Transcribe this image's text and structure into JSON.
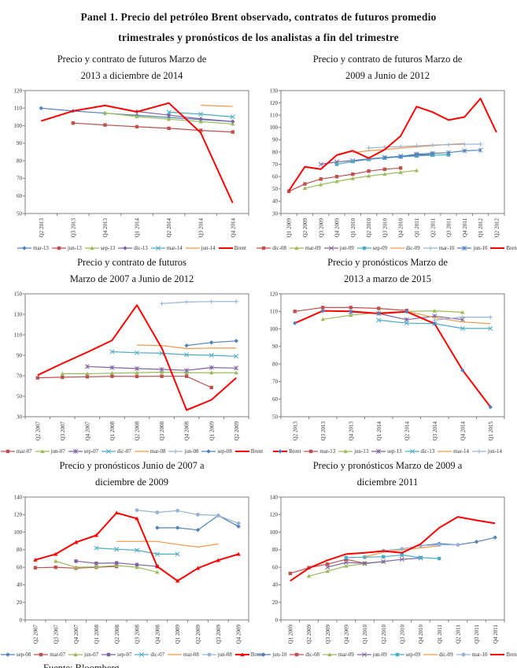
{
  "title": "Panel 1. Precio del petróleo Brent observado, contratos de futuros promedio\ntrimestrales y pronósticos de los analistas a fin del trimestre",
  "source": "Fuente: Bloomberg.",
  "chart_data": [
    {
      "type": "line",
      "title": "Precio y contrato de futuros Marzo de\n2013 a diciembre de 2014",
      "ylim": [
        50,
        120
      ],
      "ystep": 10,
      "grid": false,
      "legend_position": "bottom",
      "categories": [
        "Q2 2013",
        "Q3 2013",
        "Q4 2013",
        "Q1 2014",
        "Q2 2014",
        "Q3 2014",
        "Q4 2014"
      ],
      "series": [
        {
          "name": "mar-13",
          "color": "#4F81BD",
          "marker": "diamond",
          "values": [
            110,
            108.4,
            107.1,
            105.9,
            104.7,
            103.5,
            102.3
          ]
        },
        {
          "name": "jun-13",
          "color": "#C0504D",
          "marker": "square",
          "values": [
            null,
            101.5,
            100.4,
            99.4,
            98.5,
            97.3,
            96.4
          ]
        },
        {
          "name": "sep-13",
          "color": "#9BBB59",
          "marker": "triangle",
          "values": [
            null,
            null,
            107.3,
            105.2,
            103.7,
            102.3,
            101
          ]
        },
        {
          "name": "dic-13",
          "color": "#8064A2",
          "marker": "diamond",
          "values": [
            null,
            null,
            null,
            108.1,
            106,
            103.9,
            102.4
          ]
        },
        {
          "name": "mar-14",
          "color": "#4BACC6",
          "marker": "x",
          "values": [
            null,
            null,
            null,
            null,
            107.7,
            106.6,
            105
          ]
        },
        {
          "name": "jun-14",
          "color": "#F79646",
          "marker": "none",
          "values": [
            null,
            null,
            null,
            null,
            null,
            111.7,
            111
          ]
        },
        {
          "name": "Brent",
          "color": "#FF0000",
          "marker": "none",
          "width": 2,
          "values": [
            102.7,
            108.4,
            111.5,
            107.9,
            112.9,
            96,
            56
          ]
        }
      ]
    },
    {
      "type": "line",
      "title": "Precio y contrato de futuros Marzo de\n2009 a Junio de 2012",
      "ylim": [
        30,
        130
      ],
      "ystep": 10,
      "grid": false,
      "legend_position": "bottom",
      "categories": [
        "Q1 2009",
        "Q2 2009",
        "Q3 2009",
        "Q4 2009",
        "Q1 2010",
        "Q2 2010",
        "Q3 2010",
        "Q4 2010",
        "Q1 2011",
        "Q2 2011",
        "Q3 2011",
        "Q4 2011",
        "Q1 2012",
        "Q2 2012"
      ],
      "series": [
        {
          "name": "dic-08",
          "color": "#C0504D",
          "marker": "square",
          "values": [
            48,
            54,
            58,
            60,
            62,
            64.5,
            66,
            67,
            null,
            null,
            null,
            null,
            null,
            null
          ]
        },
        {
          "name": "mar-09",
          "color": "#9BBB59",
          "marker": "triangle",
          "values": [
            null,
            50.5,
            53.5,
            56,
            58.5,
            60.5,
            62,
            63.5,
            65,
            null,
            null,
            null,
            null,
            null
          ]
        },
        {
          "name": "jun-09",
          "color": "#8064A2",
          "marker": "x",
          "values": [
            null,
            null,
            70,
            72,
            73,
            74.5,
            75.5,
            76.5,
            77.5,
            78,
            null,
            null,
            null,
            null
          ]
        },
        {
          "name": "sep-09",
          "color": "#4BACC6",
          "marker": "square",
          "values": [
            null,
            null,
            null,
            70,
            72.3,
            74,
            75.2,
            76,
            76.8,
            77.5,
            77.7,
            null,
            null,
            null
          ]
        },
        {
          "name": "dic-09",
          "color": "#F79646",
          "marker": "none",
          "values": [
            null,
            null,
            null,
            null,
            79.5,
            81,
            82,
            83.2,
            84.2,
            85.2,
            86.2,
            87,
            null,
            null
          ]
        },
        {
          "name": "mar-10",
          "color": "#95B3D7",
          "marker": "plus",
          "values": [
            null,
            null,
            null,
            null,
            null,
            83.3,
            84,
            84.5,
            85,
            85.7,
            86,
            86.3,
            86.5,
            null
          ]
        },
        {
          "name": "jun-10",
          "color": "#4F81BD",
          "marker": "star",
          "values": [
            null,
            null,
            null,
            null,
            null,
            null,
            75.5,
            76.5,
            78.3,
            79,
            79.5,
            81,
            81.5,
            null
          ]
        },
        {
          "name": "Brent",
          "color": "#FF0000",
          "marker": "none",
          "width": 2,
          "values": [
            48.5,
            68,
            66,
            77.5,
            81,
            75,
            82,
            93,
            117,
            112.5,
            106,
            108.5,
            123.5,
            96
          ]
        }
      ]
    },
    {
      "type": "line",
      "title": "Precio y contrato de futuros\nMarzo de 2007 a  Junio de 2012",
      "ylim": [
        30,
        150
      ],
      "ystep": 20,
      "grid": false,
      "legend_position": "bottom",
      "categories": [
        "Q2 2007",
        "Q3 2007",
        "Q4 2007",
        "Q1 2008",
        "Q2 2008",
        "Q3 2008",
        "Q4 2008",
        "Q1 2009",
        "Q2 2009"
      ],
      "series": [
        {
          "name": "mar-07",
          "color": "#C0504D",
          "marker": "square",
          "values": [
            68,
            68.5,
            69,
            69.5,
            69.3,
            69.5,
            69.5,
            58.5,
            null
          ]
        },
        {
          "name": "jun-07",
          "color": "#9BBB59",
          "marker": "triangle",
          "values": [
            null,
            72,
            72,
            72.5,
            73,
            73.5,
            73,
            73,
            73
          ]
        },
        {
          "name": "sep-07",
          "color": "#8064A2",
          "marker": "star",
          "values": [
            null,
            null,
            79,
            78,
            77,
            76.2,
            75.2,
            78,
            77.5
          ]
        },
        {
          "name": "dic-07",
          "color": "#4BACC6",
          "marker": "x",
          "values": [
            null,
            null,
            null,
            93.5,
            92.5,
            92,
            90.5,
            90,
            89
          ]
        },
        {
          "name": "mar-08",
          "color": "#F79646",
          "marker": "none",
          "values": [
            null,
            null,
            null,
            null,
            100,
            99.5,
            96.5,
            97,
            97
          ]
        },
        {
          "name": "jun-08",
          "color": "#95B3D7",
          "marker": "plus",
          "values": [
            null,
            null,
            null,
            null,
            null,
            140.5,
            142,
            142.5,
            142.5
          ]
        },
        {
          "name": "sep-08",
          "color": "#4F81BD",
          "marker": "diamond",
          "values": [
            null,
            null,
            null,
            null,
            null,
            null,
            99.5,
            102.5,
            104
          ]
        },
        {
          "name": "Brent",
          "color": "#FF0000",
          "marker": "none",
          "width": 2,
          "values": [
            70.5,
            82,
            93,
            104.5,
            139,
            97,
            36.5,
            46.5,
            68
          ]
        }
      ]
    },
    {
      "type": "line",
      "title": "Precio y pronósticos Marzo de\n2013 a marzo de 2015",
      "ylim": [
        50,
        120
      ],
      "ystep": 10,
      "grid": false,
      "legend_position": "bottom",
      "categories": [
        "Q2 2013",
        "Q3 2013",
        "Q4 2013",
        "Q1 2014",
        "Q2 2014",
        "Q3 2014",
        "Q4 2014",
        "Q1 2015"
      ],
      "series": [
        {
          "name": "Brent",
          "color": "#FF0000",
          "marker": "diamond",
          "markerColor": "#4F81BD",
          "width": 2,
          "values": [
            103.3,
            110.3,
            110,
            108.8,
            109.8,
            103,
            76.5,
            55.5
          ]
        },
        {
          "name": "mar-13",
          "color": "#C0504D",
          "marker": "square",
          "values": [
            110,
            112.2,
            112.2,
            111.7,
            110.5,
            null,
            null,
            null
          ]
        },
        {
          "name": "jun-13",
          "color": "#9BBB59",
          "marker": "triangle",
          "values": [
            null,
            105.5,
            107.8,
            109.3,
            110,
            110.3,
            109.5,
            null
          ]
        },
        {
          "name": "sep-13",
          "color": "#8064A2",
          "marker": "star",
          "values": [
            null,
            null,
            109.5,
            108.8,
            105.3,
            107.3,
            105.3,
            null
          ]
        },
        {
          "name": "dic-13",
          "color": "#4BACC6",
          "marker": "x",
          "values": [
            null,
            null,
            null,
            105,
            103.3,
            103,
            100.3,
            100.3
          ]
        },
        {
          "name": "mar-14",
          "color": "#F79646",
          "marker": "none",
          "values": [
            null,
            null,
            null,
            null,
            110,
            106.5,
            104,
            103
          ]
        },
        {
          "name": "jun-14",
          "color": "#95B3D7",
          "marker": "plus",
          "values": [
            null,
            null,
            null,
            null,
            null,
            105,
            106.7,
            106.7
          ]
        }
      ]
    },
    {
      "type": "line",
      "title": "Precio y pronósticos Junio de 2007 a\ndiciembre de 2009",
      "ylim": [
        0,
        140
      ],
      "ystep": 20,
      "grid": false,
      "legend_position": "bottom",
      "categories": [
        "Q2 2007",
        "Q3 2007",
        "Q4 2007",
        "Q1 2008",
        "Q2 2008",
        "Q3 2008",
        "Q4 2008",
        "Q1 2009",
        "Q2 2009",
        "Q3 2009",
        "Q4 2009"
      ],
      "series": [
        {
          "name": "sep-08",
          "color": "#4F81BD",
          "marker": "diamond",
          "values": [
            null,
            null,
            null,
            null,
            null,
            null,
            105,
            105,
            102.5,
            119,
            106.5
          ]
        },
        {
          "name": "mar-07",
          "color": "#C0504D",
          "marker": "square",
          "values": [
            59.5,
            60,
            59,
            60,
            61,
            null,
            null,
            null,
            null,
            null,
            null
          ]
        },
        {
          "name": "jun-07",
          "color": "#9BBB59",
          "marker": "triangle",
          "values": [
            null,
            67,
            60,
            60.5,
            62,
            60,
            54.5,
            null,
            null,
            null,
            null
          ]
        },
        {
          "name": "sep-07",
          "color": "#8064A2",
          "marker": "square",
          "values": [
            null,
            null,
            67,
            64.5,
            65,
            63,
            61,
            null,
            null,
            null,
            null
          ]
        },
        {
          "name": "dic-07",
          "color": "#4BACC6",
          "marker": "x",
          "values": [
            null,
            null,
            null,
            82,
            80.5,
            79.5,
            75,
            75,
            null,
            null,
            null
          ]
        },
        {
          "name": "mar-08",
          "color": "#F79646",
          "marker": "none",
          "values": [
            null,
            null,
            null,
            null,
            89.5,
            89.5,
            89.5,
            86,
            83,
            86.5,
            null
          ]
        },
        {
          "name": "jun-08",
          "color": "#95B3D7",
          "marker": "circle",
          "values": [
            null,
            null,
            null,
            null,
            null,
            125,
            122.5,
            124.5,
            120,
            119,
            110
          ]
        },
        {
          "name": "Brent",
          "color": "#FF0000",
          "marker": "triangle",
          "width": 2,
          "values": [
            68.5,
            75,
            88.5,
            96.5,
            122,
            115.5,
            61,
            44.5,
            59,
            68,
            75
          ]
        }
      ]
    },
    {
      "type": "line",
      "title": "Precio y pronósticos Marzo de 2009 a\ndiciembre 2011",
      "ylim": [
        0,
        140
      ],
      "ystep": 20,
      "grid": false,
      "legend_position": "bottom",
      "categories": [
        "Q1 2009",
        "Q2 2009",
        "Q3 2009",
        "Q4 2009",
        "Q1 2010",
        "Q2 2010",
        "Q3 2010",
        "Q4 2010",
        "Q1 2011",
        "Q2 2011",
        "Q3 2011",
        "Q4 2011"
      ],
      "series": [
        {
          "name": "jun-10",
          "color": "#4F81BD",
          "marker": "diamond",
          "values": [
            null,
            null,
            null,
            null,
            null,
            null,
            null,
            84.5,
            87,
            85.5,
            89,
            94
          ]
        },
        {
          "name": "dic-08",
          "color": "#C0504D",
          "marker": "square",
          "values": [
            53,
            59.5,
            63.5,
            69,
            64.5,
            null,
            null,
            null,
            null,
            null,
            null,
            null
          ]
        },
        {
          "name": "mar-09",
          "color": "#9BBB59",
          "marker": "triangle",
          "values": [
            null,
            50,
            55.5,
            61.5,
            64,
            66.5,
            null,
            null,
            null,
            null,
            null,
            null
          ]
        },
        {
          "name": "jun-09",
          "color": "#8064A2",
          "marker": "x",
          "values": [
            null,
            null,
            60,
            65.5,
            64.5,
            66.5,
            69,
            70.5,
            null,
            null,
            null,
            null
          ]
        },
        {
          "name": "sep-09",
          "color": "#4BACC6",
          "marker": "square",
          "values": [
            null,
            null,
            null,
            71,
            71.5,
            72,
            74,
            71,
            70,
            null,
            null,
            null
          ]
        },
        {
          "name": "dic-09",
          "color": "#F79646",
          "marker": "none",
          "values": [
            null,
            null,
            null,
            null,
            72,
            77,
            80,
            82,
            84.5,
            null,
            null,
            null
          ]
        },
        {
          "name": "mar-10",
          "color": "#95B3D7",
          "marker": "circle",
          "values": [
            null,
            null,
            null,
            null,
            null,
            79,
            81,
            84.5,
            85.5,
            85.5,
            null,
            null
          ]
        },
        {
          "name": "Brent",
          "color": "#FF0000",
          "marker": "none",
          "width": 2,
          "values": [
            44.5,
            59,
            68,
            75,
            76.5,
            78.5,
            76.5,
            86.5,
            105,
            117.5,
            113.5,
            110
          ]
        }
      ]
    }
  ]
}
